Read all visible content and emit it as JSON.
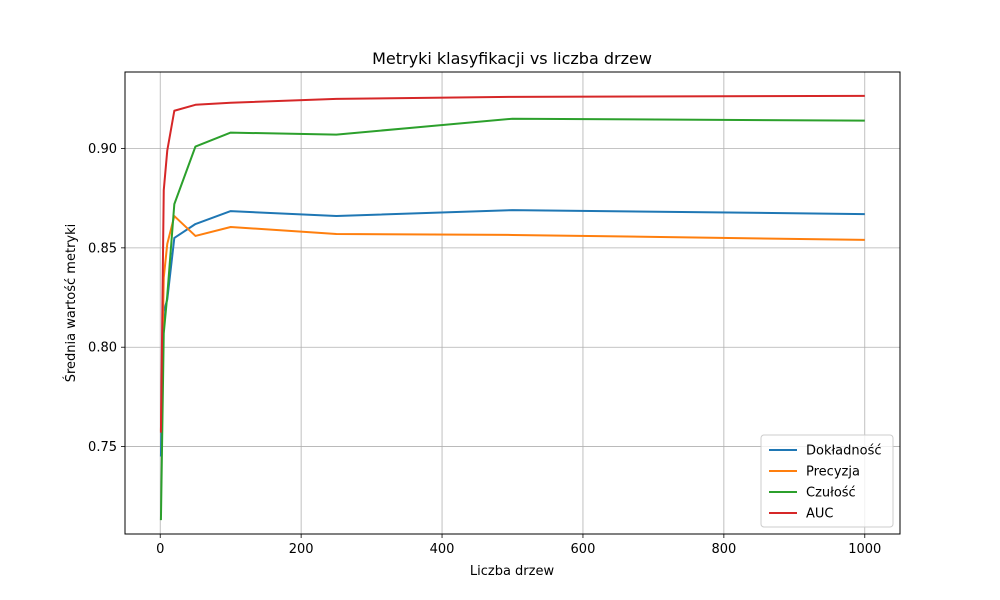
{
  "chart_data": {
    "type": "line",
    "title": "Metryki klasyfikacji vs liczba drzew",
    "xlabel": "Liczba drzew",
    "ylabel": "Średnia wartość metryki",
    "xlim": [
      -50,
      1050
    ],
    "ylim": [
      0.706,
      0.9385
    ],
    "xticks": [
      0,
      200,
      400,
      600,
      800,
      1000
    ],
    "yticks": [
      0.75,
      0.8,
      0.85,
      0.9
    ],
    "ytick_labels": [
      "0.75",
      "0.80",
      "0.85",
      "0.90"
    ],
    "grid": true,
    "legend_position": "lower-right",
    "x": [
      1,
      5,
      10,
      20,
      50,
      100,
      250,
      500,
      1000
    ],
    "series": [
      {
        "name": "Dokładność",
        "color": "#1f77b4",
        "values": [
          0.745,
          0.818,
          0.824,
          0.855,
          0.862,
          0.8685,
          0.866,
          0.869,
          0.867
        ]
      },
      {
        "name": "Precyzja",
        "color": "#ff7f0e",
        "values": [
          0.758,
          0.835,
          0.852,
          0.866,
          0.856,
          0.8605,
          0.857,
          0.8565,
          0.854
        ]
      },
      {
        "name": "Czułość",
        "color": "#2ca02c",
        "values": [
          0.713,
          0.807,
          0.826,
          0.872,
          0.901,
          0.908,
          0.907,
          0.915,
          0.914
        ]
      },
      {
        "name": "AUC",
        "color": "#d62728",
        "values": [
          0.757,
          0.879,
          0.899,
          0.919,
          0.922,
          0.923,
          0.925,
          0.926,
          0.9265
        ]
      }
    ]
  }
}
